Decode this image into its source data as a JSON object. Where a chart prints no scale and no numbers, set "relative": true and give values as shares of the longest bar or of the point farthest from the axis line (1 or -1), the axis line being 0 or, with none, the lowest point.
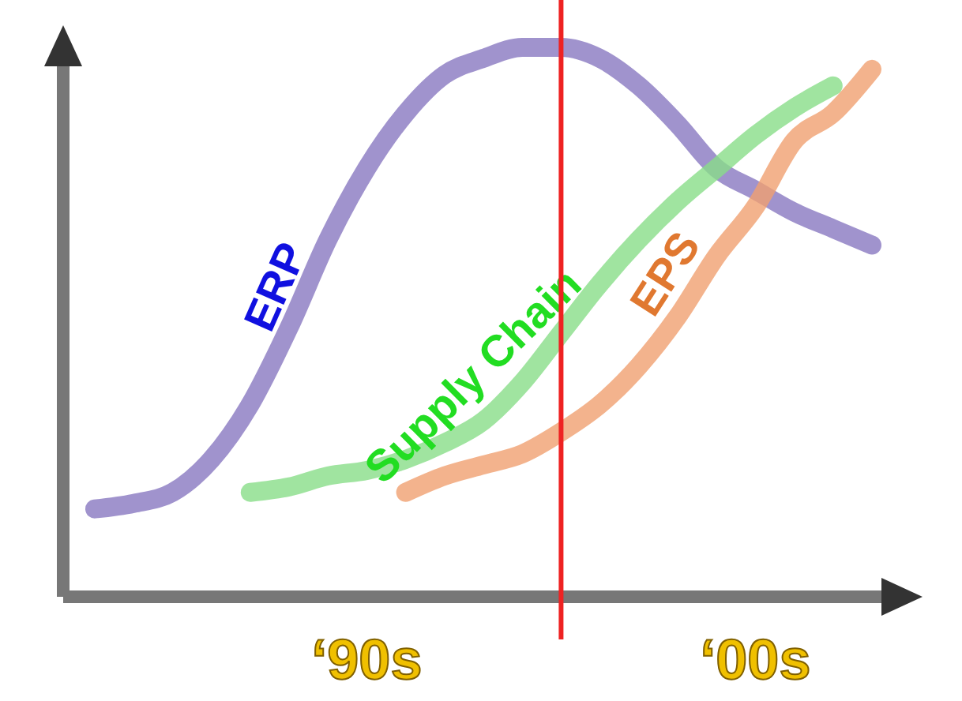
{
  "chart_data": {
    "type": "line",
    "relative": true,
    "marker": "none",
    "line_style": "solid",
    "categories": [
      null,
      null,
      null,
      null,
      null,
      null,
      null,
      "‘90s",
      null,
      null,
      null,
      null,
      null,
      null,
      null,
      null,
      null,
      "‘00s",
      null,
      null,
      null
    ],
    "series": [
      {
        "name": "ERP",
        "color": "#8878c0",
        "values": [
          0.16,
          0.17,
          0.19,
          0.25,
          0.35,
          0.49,
          0.65,
          0.78,
          0.88,
          0.95,
          0.98,
          1,
          1,
          0.98,
          0.93,
          0.86,
          0.78,
          0.74,
          0.7,
          0.67,
          0.64
        ]
      },
      {
        "name": "Supply Chain",
        "color": "#88dd88",
        "values": [
          null,
          null,
          null,
          null,
          0.19,
          0.2,
          0.22,
          0.23,
          0.25,
          0.28,
          0.32,
          0.39,
          0.48,
          0.57,
          0.65,
          0.72,
          0.78,
          0.84,
          0.89,
          0.93,
          null
        ]
      },
      {
        "name": "EPS",
        "color": "#f0a070",
        "values": [
          null,
          null,
          null,
          null,
          null,
          null,
          null,
          null,
          0.19,
          0.22,
          0.24,
          0.26,
          0.3,
          0.35,
          0.42,
          0.51,
          0.62,
          0.71,
          0.83,
          0.88,
          0.96
        ]
      }
    ]
  }
}
